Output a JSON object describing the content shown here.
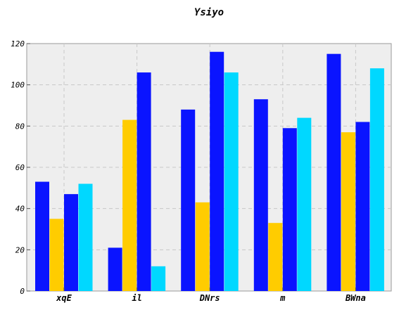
{
  "chart_data": {
    "type": "bar",
    "title": "Ysiyo",
    "xlabel": "",
    "ylabel": "",
    "categories": [
      "xqE",
      "il",
      "DNrs",
      "m",
      "BWna"
    ],
    "series": [
      {
        "color": "#0a14ff",
        "values": [
          53,
          21,
          88,
          93,
          115
        ]
      },
      {
        "color": "#ffcc00",
        "values": [
          35,
          83,
          43,
          33,
          77
        ]
      },
      {
        "color": "#0a14ff",
        "values": [
          47,
          106,
          116,
          79,
          82
        ]
      },
      {
        "color": "#00d8ff",
        "values": [
          52,
          12,
          106,
          84,
          108
        ]
      }
    ],
    "ylim": [
      0,
      120
    ],
    "yticks": [
      0,
      20,
      40,
      60,
      80,
      100,
      120
    ],
    "grid": true,
    "background_color": "#eeeeee"
  }
}
